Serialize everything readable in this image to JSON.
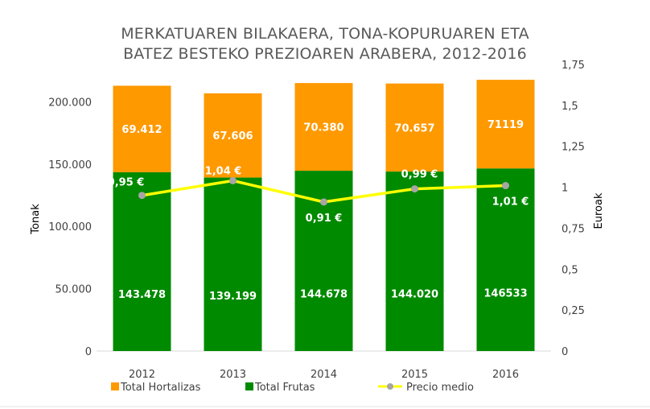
{
  "chart_data": {
    "type": "bar",
    "stacked": true,
    "title_lines": [
      "MERKATUAREN BILAKAERA, TONA-KOPURUAREN ETA",
      "BATEZ BESTEKO PREZIOAREN ARABERA, 2012-2016"
    ],
    "categories": [
      "2012",
      "2013",
      "2014",
      "2015",
      "2016"
    ],
    "ylabel": "Tonak",
    "y2label": "Euroak",
    "ylim": [
      0,
      230000
    ],
    "y2lim": [
      0,
      1.75
    ],
    "y_ticks": [
      {
        "value": 0,
        "label": "0"
      },
      {
        "value": 50000,
        "label": "50.000"
      },
      {
        "value": 100000,
        "label": "100.000"
      },
      {
        "value": 150000,
        "label": "150.000"
      },
      {
        "value": 200000,
        "label": "200.000"
      }
    ],
    "y2_ticks": [
      {
        "value": 0,
        "label": "0"
      },
      {
        "value": 0.25,
        "label": "0,25"
      },
      {
        "value": 0.5,
        "label": "0,5"
      },
      {
        "value": 0.75,
        "label": "0,75"
      },
      {
        "value": 1,
        "label": "1"
      },
      {
        "value": 1.25,
        "label": "1,25"
      },
      {
        "value": 1.5,
        "label": "1,5"
      },
      {
        "value": 1.75,
        "label": "1,75"
      }
    ],
    "series": [
      {
        "name": "Total Frutas",
        "kind": "bar",
        "color": "#008a00",
        "values": [
          143478,
          139199,
          144678,
          144020,
          146533
        ],
        "labels": [
          "143.478",
          "139.199",
          "144.678",
          "144.020",
          "146533"
        ]
      },
      {
        "name": "Total Hortalizas",
        "kind": "bar",
        "color": "#ff9900",
        "values": [
          69412,
          67606,
          70380,
          70657,
          71119
        ],
        "labels": [
          "69.412",
          "67.606",
          "70.380",
          "70.657",
          "71119"
        ]
      },
      {
        "name": "Precio medio",
        "kind": "line",
        "axis": "y2",
        "color": "#ffff00",
        "marker_color": "#a6a6a6",
        "values": [
          0.95,
          1.04,
          0.91,
          0.99,
          1.01
        ],
        "labels": [
          "0,95 €",
          "1,04 €",
          "0,91 €",
          "0,99 €",
          "1,01 €"
        ]
      }
    ],
    "legend": {
      "position": "bottom",
      "items": [
        "Total Hortalizas",
        "Total Frutas",
        "Precio medio"
      ]
    },
    "grid": false
  }
}
